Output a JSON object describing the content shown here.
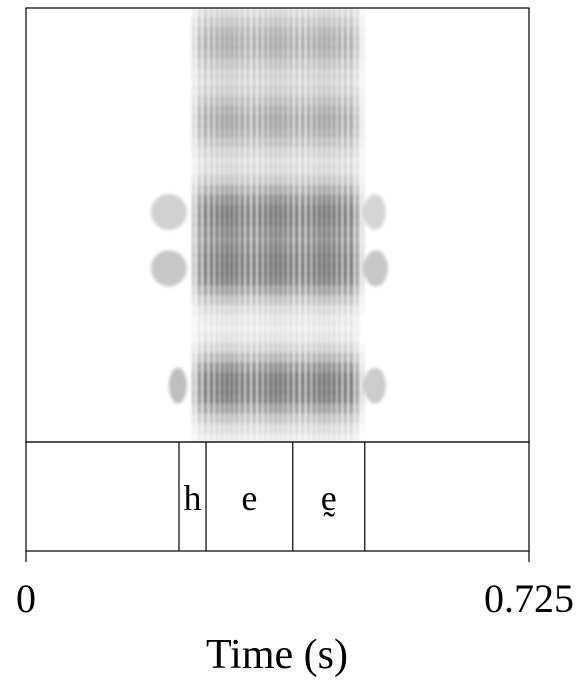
{
  "figure": {
    "x_axis": {
      "label": "Time (s)",
      "min": 0,
      "max": 0.725,
      "min_label": "0",
      "max_label": "0.725"
    },
    "segments": [
      {
        "label": "h",
        "start": 0.2205,
        "end": 0.2595
      },
      {
        "label": "e",
        "start": 0.2595,
        "end": 0.3845
      },
      {
        "label": "ḛ",
        "start": 0.3845,
        "end": 0.4883
      }
    ],
    "tier_boundaries": [
      0.2205,
      0.2595,
      0.3845,
      0.4883
    ],
    "spectrogram": {
      "voicing_start": 0.232,
      "voicing_end": 0.487,
      "formant_bands": [
        {
          "name": "F1",
          "frac": 0.13,
          "strength": 1.0
        },
        {
          "name": "F2",
          "frac": 0.4,
          "strength": 0.95
        },
        {
          "name": "F3",
          "frac": 0.53,
          "strength": 0.85
        },
        {
          "name": "F4",
          "frac": 0.74,
          "strength": 0.55
        },
        {
          "name": "F5",
          "frac": 0.92,
          "strength": 0.5
        }
      ],
      "color": "#000000"
    }
  }
}
